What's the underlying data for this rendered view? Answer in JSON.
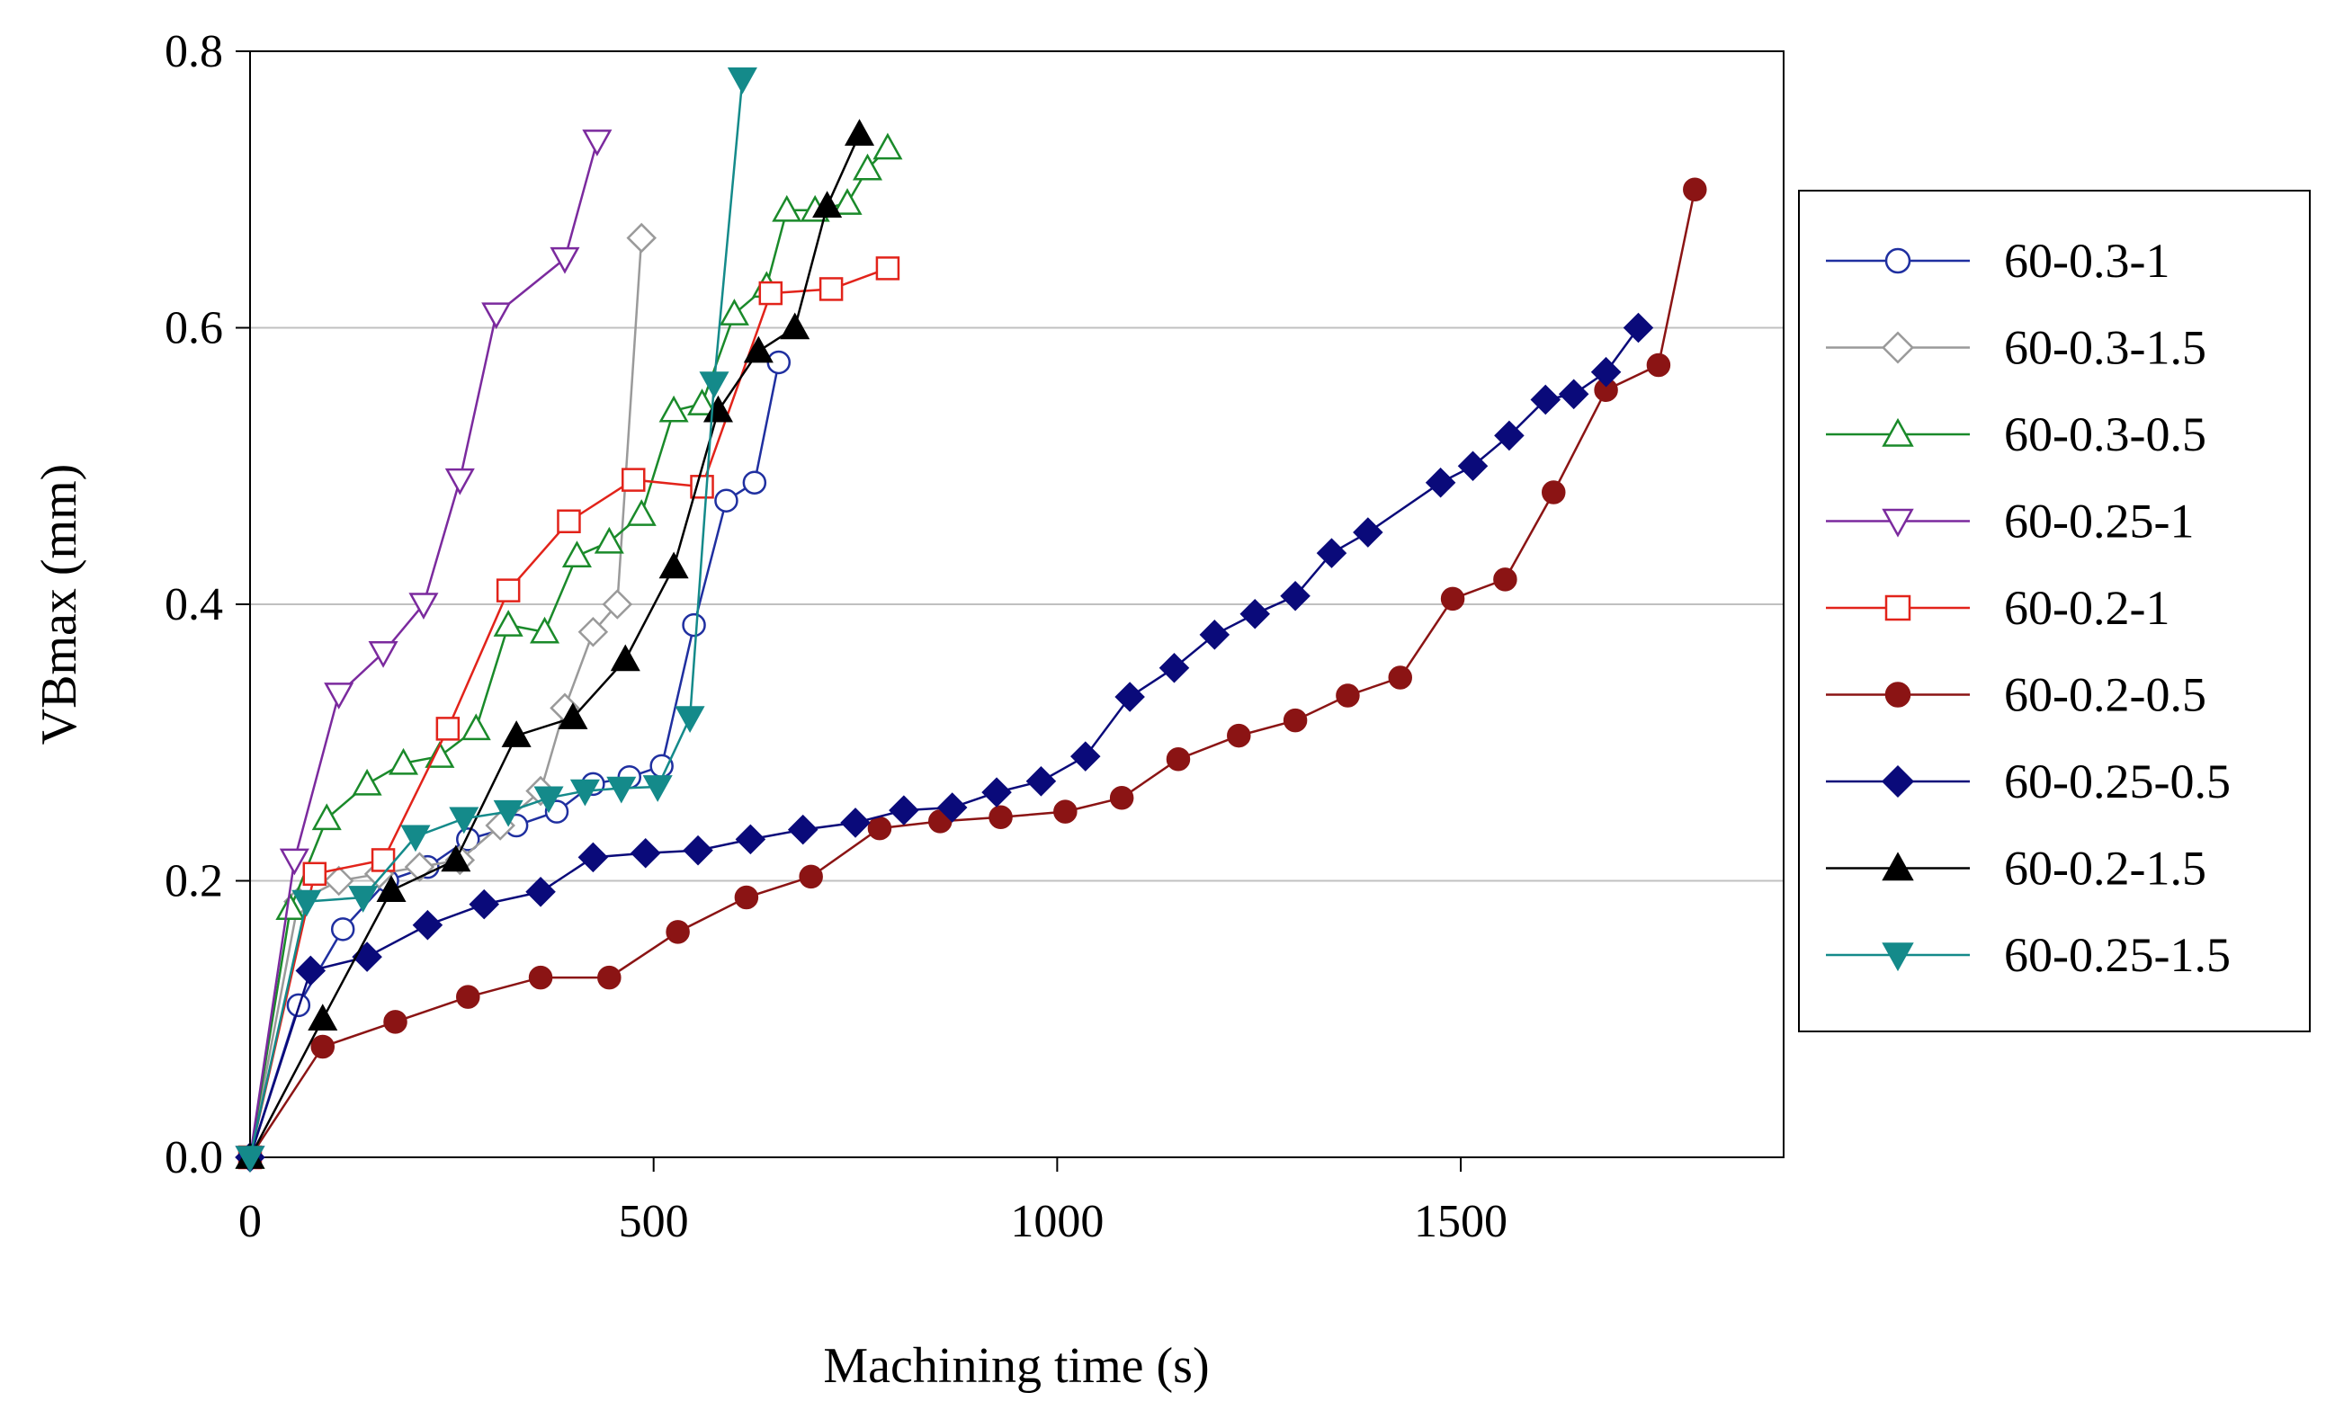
{
  "chart_data": {
    "type": "line",
    "title": "",
    "xlabel": "Machining time (s)",
    "ylabel": "VBmax (mm)",
    "xlim": [
      0,
      1900
    ],
    "ylim": [
      0,
      0.8
    ],
    "x_ticks": [
      "0",
      "500",
      "1000",
      "1500"
    ],
    "x_tick_values": [
      0,
      500,
      1000,
      1500
    ],
    "y_ticks": [
      "0.0",
      "0.2",
      "0.4",
      "0.6",
      "0.8"
    ],
    "y_tick_values": [
      0,
      0.2,
      0.4,
      0.6,
      0.8
    ],
    "grid": "horizontal",
    "legend_position": "right",
    "series": [
      {
        "name": "60-0.3-1",
        "color": "#1f2fa0",
        "marker": "circle",
        "filled": false,
        "x": [
          0,
          60,
          115,
          170,
          220,
          270,
          330,
          380,
          425,
          470,
          510,
          550,
          590,
          625,
          655
        ],
        "y": [
          0,
          0.11,
          0.165,
          0.2,
          0.21,
          0.23,
          0.24,
          0.25,
          0.27,
          0.275,
          0.283,
          0.385,
          0.475,
          0.488,
          0.575
        ]
      },
      {
        "name": "60-0.3-1.5",
        "color": "#9a9a9a",
        "marker": "diamond",
        "filled": false,
        "x": [
          0,
          60,
          110,
          160,
          210,
          260,
          310,
          360,
          390,
          425,
          455,
          485
        ],
        "y": [
          0,
          0.185,
          0.2,
          0.205,
          0.21,
          0.215,
          0.24,
          0.265,
          0.325,
          0.38,
          0.4,
          0.665
        ]
      },
      {
        "name": "60-0.3-0.5",
        "color": "#1a8a2a",
        "marker": "triangle-up",
        "filled": false,
        "x": [
          0,
          50,
          95,
          145,
          190,
          235,
          280,
          320,
          365,
          405,
          445,
          485,
          525,
          560,
          600,
          640,
          665,
          700,
          740,
          765,
          790
        ],
        "y": [
          0,
          0.18,
          0.245,
          0.27,
          0.285,
          0.29,
          0.31,
          0.385,
          0.38,
          0.435,
          0.445,
          0.465,
          0.54,
          0.545,
          0.61,
          0.63,
          0.685,
          0.685,
          0.69,
          0.715,
          0.73
        ]
      },
      {
        "name": "60-0.25-1",
        "color": "#7b2a9e",
        "marker": "triangle-down",
        "filled": false,
        "x": [
          0,
          55,
          110,
          165,
          215,
          260,
          305,
          390,
          430
        ],
        "y": [
          0,
          0.215,
          0.335,
          0.365,
          0.4,
          0.49,
          0.61,
          0.65,
          0.735
        ]
      },
      {
        "name": "60-0.2-1",
        "color": "#e2231a",
        "marker": "square",
        "filled": false,
        "x": [
          0,
          80,
          165,
          245,
          320,
          395,
          475,
          560,
          645,
          720,
          790
        ],
        "y": [
          0,
          0.205,
          0.215,
          0.31,
          0.41,
          0.46,
          0.49,
          0.485,
          0.625,
          0.628,
          0.643
        ]
      },
      {
        "name": "60-0.2-0.5",
        "color": "#8b1414",
        "marker": "circle",
        "filled": true,
        "x": [
          0,
          90,
          180,
          270,
          360,
          445,
          530,
          615,
          695,
          780,
          855,
          930,
          1010,
          1080,
          1150,
          1225,
          1295,
          1360,
          1425,
          1490,
          1555,
          1615,
          1680,
          1745,
          1790
        ],
        "y": [
          0,
          0.08,
          0.098,
          0.116,
          0.13,
          0.13,
          0.163,
          0.188,
          0.203,
          0.238,
          0.243,
          0.246,
          0.25,
          0.26,
          0.288,
          0.305,
          0.316,
          0.334,
          0.347,
          0.404,
          0.418,
          0.481,
          0.555,
          0.573,
          0.7
        ]
      },
      {
        "name": "60-0.25-0.5",
        "color": "#0a0a7a",
        "marker": "diamond",
        "filled": true,
        "x": [
          0,
          75,
          145,
          220,
          290,
          360,
          425,
          490,
          555,
          620,
          685,
          750,
          810,
          870,
          925,
          980,
          1035,
          1090,
          1145,
          1195,
          1245,
          1295,
          1340,
          1385,
          1475,
          1515,
          1560,
          1605,
          1640,
          1680,
          1720
        ],
        "y": [
          0,
          0.135,
          0.145,
          0.168,
          0.183,
          0.192,
          0.217,
          0.22,
          0.222,
          0.23,
          0.237,
          0.242,
          0.251,
          0.253,
          0.264,
          0.272,
          0.29,
          0.333,
          0.354,
          0.378,
          0.393,
          0.406,
          0.437,
          0.452,
          0.488,
          0.5,
          0.522,
          0.548,
          0.552,
          0.568,
          0.6
        ]
      },
      {
        "name": "60-0.2-1.5",
        "color": "#000000",
        "marker": "triangle-up",
        "filled": true,
        "x": [
          0,
          90,
          175,
          255,
          330,
          400,
          465,
          525,
          580,
          630,
          675,
          715,
          755
        ],
        "y": [
          0,
          0.1,
          0.193,
          0.215,
          0.305,
          0.318,
          0.36,
          0.427,
          0.54,
          0.583,
          0.6,
          0.688,
          0.74
        ]
      },
      {
        "name": "60-0.25-1.5",
        "color": "#148a8a",
        "marker": "triangle-down",
        "filled": true,
        "x": [
          0,
          70,
          140,
          205,
          265,
          320,
          370,
          415,
          460,
          505,
          545,
          575,
          610
        ],
        "y": [
          0,
          0.185,
          0.188,
          0.232,
          0.245,
          0.25,
          0.26,
          0.265,
          0.267,
          0.268,
          0.318,
          0.56,
          0.78
        ]
      }
    ]
  }
}
